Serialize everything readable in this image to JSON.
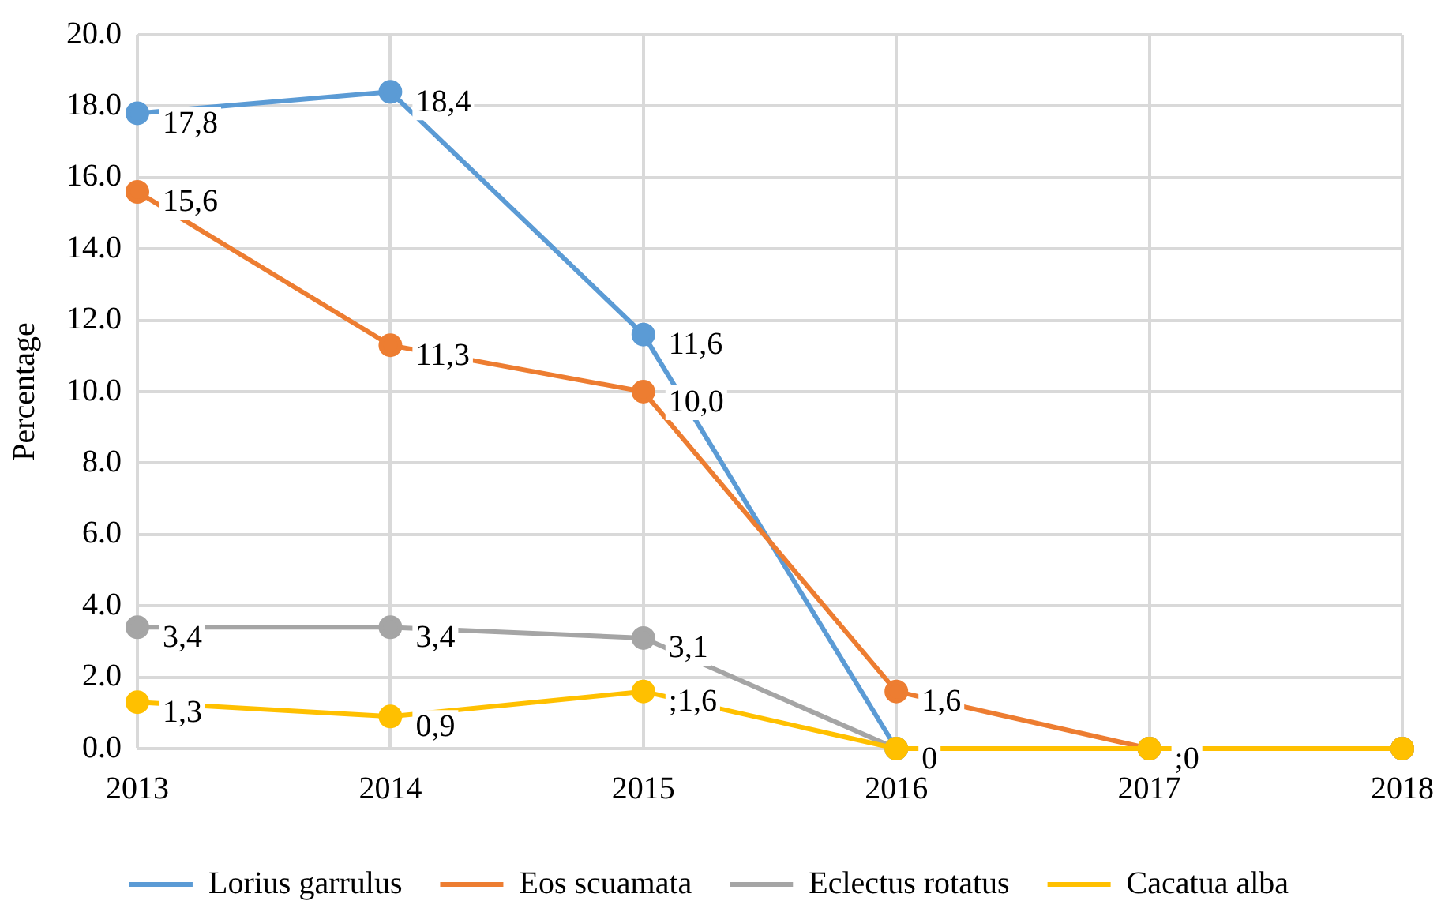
{
  "chart_data": {
    "type": "line",
    "ylabel": "Percentage",
    "x": [
      2013,
      2014,
      2015,
      2016,
      2017,
      2018
    ],
    "xlim": [
      2013,
      2018
    ],
    "xticks": [
      2013,
      2014,
      2015,
      2016,
      2017,
      2018
    ],
    "ylim": [
      0,
      20
    ],
    "yticks": [
      {
        "value": 0,
        "label": "0.0"
      },
      {
        "value": 2,
        "label": "2.0"
      },
      {
        "value": 4,
        "label": "4.0"
      },
      {
        "value": 6,
        "label": "6.0"
      },
      {
        "value": 8,
        "label": "8.0"
      },
      {
        "value": 10,
        "label": "10.0"
      },
      {
        "value": 12,
        "label": "12.0"
      },
      {
        "value": 14,
        "label": "14.0"
      },
      {
        "value": 16,
        "label": "16.0"
      },
      {
        "value": 18,
        "label": "18.0"
      },
      {
        "value": 20,
        "label": "20.0"
      }
    ],
    "grid": true,
    "legend": "bottom",
    "marker": "circle",
    "line_style": "solid",
    "series": [
      {
        "name": "Lorius garrulus",
        "color": "#5b9bd5",
        "values": [
          17.8,
          18.4,
          11.6,
          0,
          0,
          0
        ],
        "value_labels": [
          "17,8",
          "18,4",
          "11,6",
          "0",
          null,
          null
        ]
      },
      {
        "name": "Eos scuamata",
        "color": "#ed7d31",
        "values": [
          15.6,
          11.3,
          10.0,
          1.6,
          0,
          0
        ],
        "value_labels": [
          "15,6",
          "11,3",
          "10,0",
          "1,6",
          ";0",
          null
        ]
      },
      {
        "name": "Eclectus rotatus",
        "color": "#a5a5a5",
        "values": [
          3.4,
          3.4,
          3.1,
          0,
          0,
          0
        ],
        "value_labels": [
          "3,4",
          "3,4",
          "3,1",
          null,
          null,
          null
        ]
      },
      {
        "name": "Cacatua alba",
        "color": "#ffc000",
        "values": [
          1.3,
          0.9,
          1.6,
          0,
          0,
          0
        ],
        "value_labels": [
          "1,3",
          "0,9",
          ";1,6",
          null,
          null,
          null
        ]
      }
    ]
  }
}
